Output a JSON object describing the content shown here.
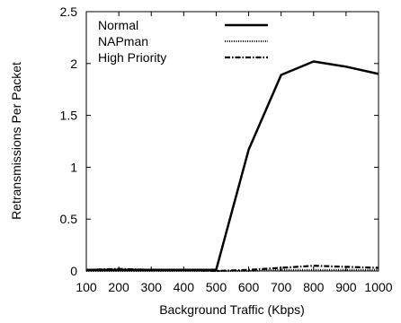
{
  "chart_data": {
    "type": "line",
    "xlabel": "Background Traffic (Kbps)",
    "ylabel": "Retransmissions Per Packet",
    "xlim": [
      100,
      1000
    ],
    "ylim": [
      0,
      2.5
    ],
    "xticks": [
      100,
      200,
      300,
      400,
      500,
      600,
      700,
      800,
      900,
      1000
    ],
    "yticks": [
      0,
      0.5,
      1,
      1.5,
      2,
      2.5
    ],
    "x": [
      100,
      200,
      300,
      400,
      500,
      600,
      700,
      800,
      900,
      1000
    ],
    "legend_position": "top-left",
    "grid": false,
    "series": [
      {
        "name": "Normal",
        "style": "solid",
        "values": [
          0.01,
          0.01,
          0.01,
          0.01,
          0.01,
          1.17,
          1.89,
          2.02,
          1.97,
          1.9
        ]
      },
      {
        "name": "NAPman",
        "style": "dotted",
        "values": [
          0.0,
          0.0,
          0.0,
          0.0,
          0.0,
          0.0,
          0.01,
          0.01,
          0.01,
          0.01
        ]
      },
      {
        "name": "High Priority",
        "style": "dashdot",
        "values": [
          0.01,
          0.02,
          0.01,
          0.01,
          0.0,
          0.01,
          0.03,
          0.05,
          0.04,
          0.03
        ]
      }
    ]
  }
}
